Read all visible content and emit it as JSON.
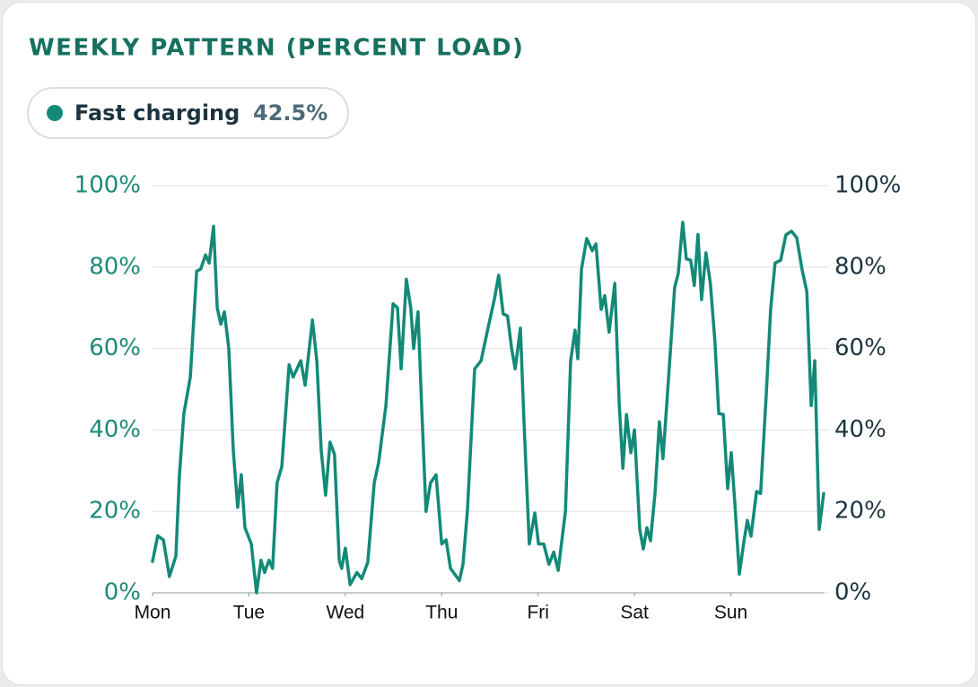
{
  "chart_data": {
    "type": "line",
    "title": "WEEKLY PATTERN (PERCENT LOAD)",
    "summary": {
      "value": 42.5,
      "label": "42.5%"
    },
    "xlim": [
      0,
      168
    ],
    "xticks": [
      {
        "value": 0,
        "label": "Mon"
      },
      {
        "value": 24,
        "label": "Tue"
      },
      {
        "value": 48,
        "label": "Wed"
      },
      {
        "value": 72,
        "label": "Thu"
      },
      {
        "value": 96,
        "label": "Fri"
      },
      {
        "value": 120,
        "label": "Sat"
      },
      {
        "value": 144,
        "label": "Sun"
      }
    ],
    "ylim": [
      0,
      100
    ],
    "yticks": [
      {
        "value": 0,
        "label": "0%"
      },
      {
        "value": 20,
        "label": "20%"
      },
      {
        "value": 40,
        "label": "40%"
      },
      {
        "value": 60,
        "label": "60%"
      },
      {
        "value": 80,
        "label": "80%"
      },
      {
        "value": 100,
        "label": "100%"
      }
    ],
    "y2lim": [
      0,
      100
    ],
    "y2ticks": [
      {
        "value": 0,
        "label": "0%"
      },
      {
        "value": 20,
        "label": "20%"
      },
      {
        "value": 40,
        "label": "40%"
      },
      {
        "value": 60,
        "label": "60%"
      },
      {
        "value": 80,
        "label": "80%"
      },
      {
        "value": 100,
        "label": "100%"
      }
    ],
    "grid": true,
    "x": [
      0,
      1.3,
      2.7,
      4.2,
      5.8,
      6.7,
      7.8,
      9.4,
      11,
      12,
      13.2,
      14.1,
      15.2,
      16.1,
      17,
      17.9,
      19,
      20.1,
      21.2,
      22.1,
      23,
      24.6,
      25.9,
      27,
      27.9,
      29,
      29.9,
      31,
      32.2,
      34,
      35,
      36.9,
      38,
      39.8,
      40.9,
      42,
      43.1,
      44.2,
      45.3,
      46.5,
      47.1,
      48,
      49.2,
      50.9,
      52.1,
      53.6,
      55.2,
      56.3,
      58.1,
      59.9,
      61,
      61.9,
      63.2,
      64.3,
      65,
      66.1,
      67,
      68.1,
      69.2,
      70.6,
      72,
      73.1,
      74.2,
      75.3,
      76.4,
      77.3,
      78.4,
      80.2,
      81.8,
      83.3,
      85.1,
      86.2,
      87.3,
      88.4,
      89.4,
      90.3,
      91.6,
      92.5,
      93.8,
      95.2,
      96.1,
      97.4,
      98.7,
      99.9,
      101,
      102.8,
      104.1,
      105.2,
      105.9,
      106.8,
      108.1,
      109.5,
      110.4,
      111.7,
      112.6,
      113.7,
      115.1,
      116.2,
      117.1,
      118,
      119.1,
      120,
      121.3,
      122.2,
      123.1,
      124,
      125.1,
      126.2,
      127.1,
      128.5,
      130,
      130.9,
      132,
      132.9,
      134,
      134.9,
      135.8,
      136.7,
      137.8,
      138.9,
      140,
      141,
      142.1,
      143.2,
      144.1,
      145,
      146.1,
      147.2,
      148.1,
      149,
      150.4,
      151.4,
      152.8,
      153.9,
      155,
      156.4,
      157.7,
      159.1,
      160.4,
      161.7,
      162.9,
      164,
      164.9,
      166,
      167.1
    ],
    "series": [
      {
        "name": "Fast charging",
        "color": "#138a78",
        "values": [
          7.7,
          14,
          13,
          4,
          9,
          29,
          44,
          53,
          79,
          79.5,
          83,
          81,
          90,
          70,
          66,
          69,
          60,
          35,
          21,
          29,
          16,
          12,
          0,
          8,
          5,
          8,
          6,
          27,
          31,
          56,
          53,
          57,
          51,
          67,
          57,
          35,
          24,
          37,
          34,
          8,
          6,
          11,
          2,
          5,
          3.5,
          7.5,
          27,
          32,
          46,
          71,
          70,
          55,
          77,
          70,
          60,
          69,
          46,
          20,
          27,
          29,
          12,
          13,
          6,
          4.5,
          3,
          7,
          20,
          55,
          57,
          64,
          72,
          78,
          68.5,
          68,
          60,
          55,
          65,
          42,
          12,
          19.6,
          12,
          12,
          7,
          10,
          5.5,
          20,
          57,
          64.5,
          57.5,
          79.5,
          87,
          84,
          85.7,
          69.6,
          73,
          64,
          76,
          46.5,
          30.6,
          43.8,
          34.4,
          40,
          15.6,
          10.8,
          16,
          12.8,
          24.4,
          42,
          33,
          53,
          75,
          78.4,
          91,
          82,
          81.7,
          75.5,
          88,
          72,
          83.5,
          76,
          62,
          44,
          43.8,
          25.6,
          34.4,
          22,
          4.6,
          12.3,
          17.8,
          13.9,
          24.9,
          24.4,
          48.7,
          69.6,
          81,
          81.7,
          87.9,
          88.8,
          87.2,
          79.5,
          74,
          46,
          57,
          15.6,
          24.4
        ]
      }
    ]
  }
}
